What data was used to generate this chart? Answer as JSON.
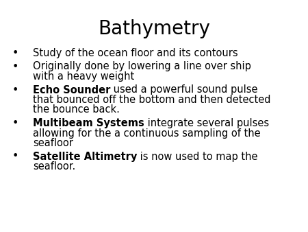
{
  "title": "Bathymetry",
  "title_fontsize": 20,
  "background_color": "#ffffff",
  "text_color": "#000000",
  "bullet_char": "•",
  "bullets": [
    {
      "bold_part": "",
      "normal_part": "Study of the ocean floor and its contours",
      "lines": 1
    },
    {
      "bold_part": "",
      "normal_part": "Originally done by lowering a line over ship\nwith a heavy weight",
      "lines": 2
    },
    {
      "bold_part": "Echo Sounder",
      "normal_part": " used a powerful sound pulse\nthat bounced off the bottom and then detected\nthe bounce back.",
      "lines": 3
    },
    {
      "bold_part": "Multibeam Systems",
      "normal_part": " integrate several pulses\nallowing for the a continuous sampling of the\nseafloor",
      "lines": 3
    },
    {
      "bold_part": "Satellite Altimetry",
      "normal_part": " is now used to map the\nseafloor.",
      "lines": 2
    }
  ],
  "body_fontsize": 10.5,
  "font_family": "DejaVu Sans"
}
